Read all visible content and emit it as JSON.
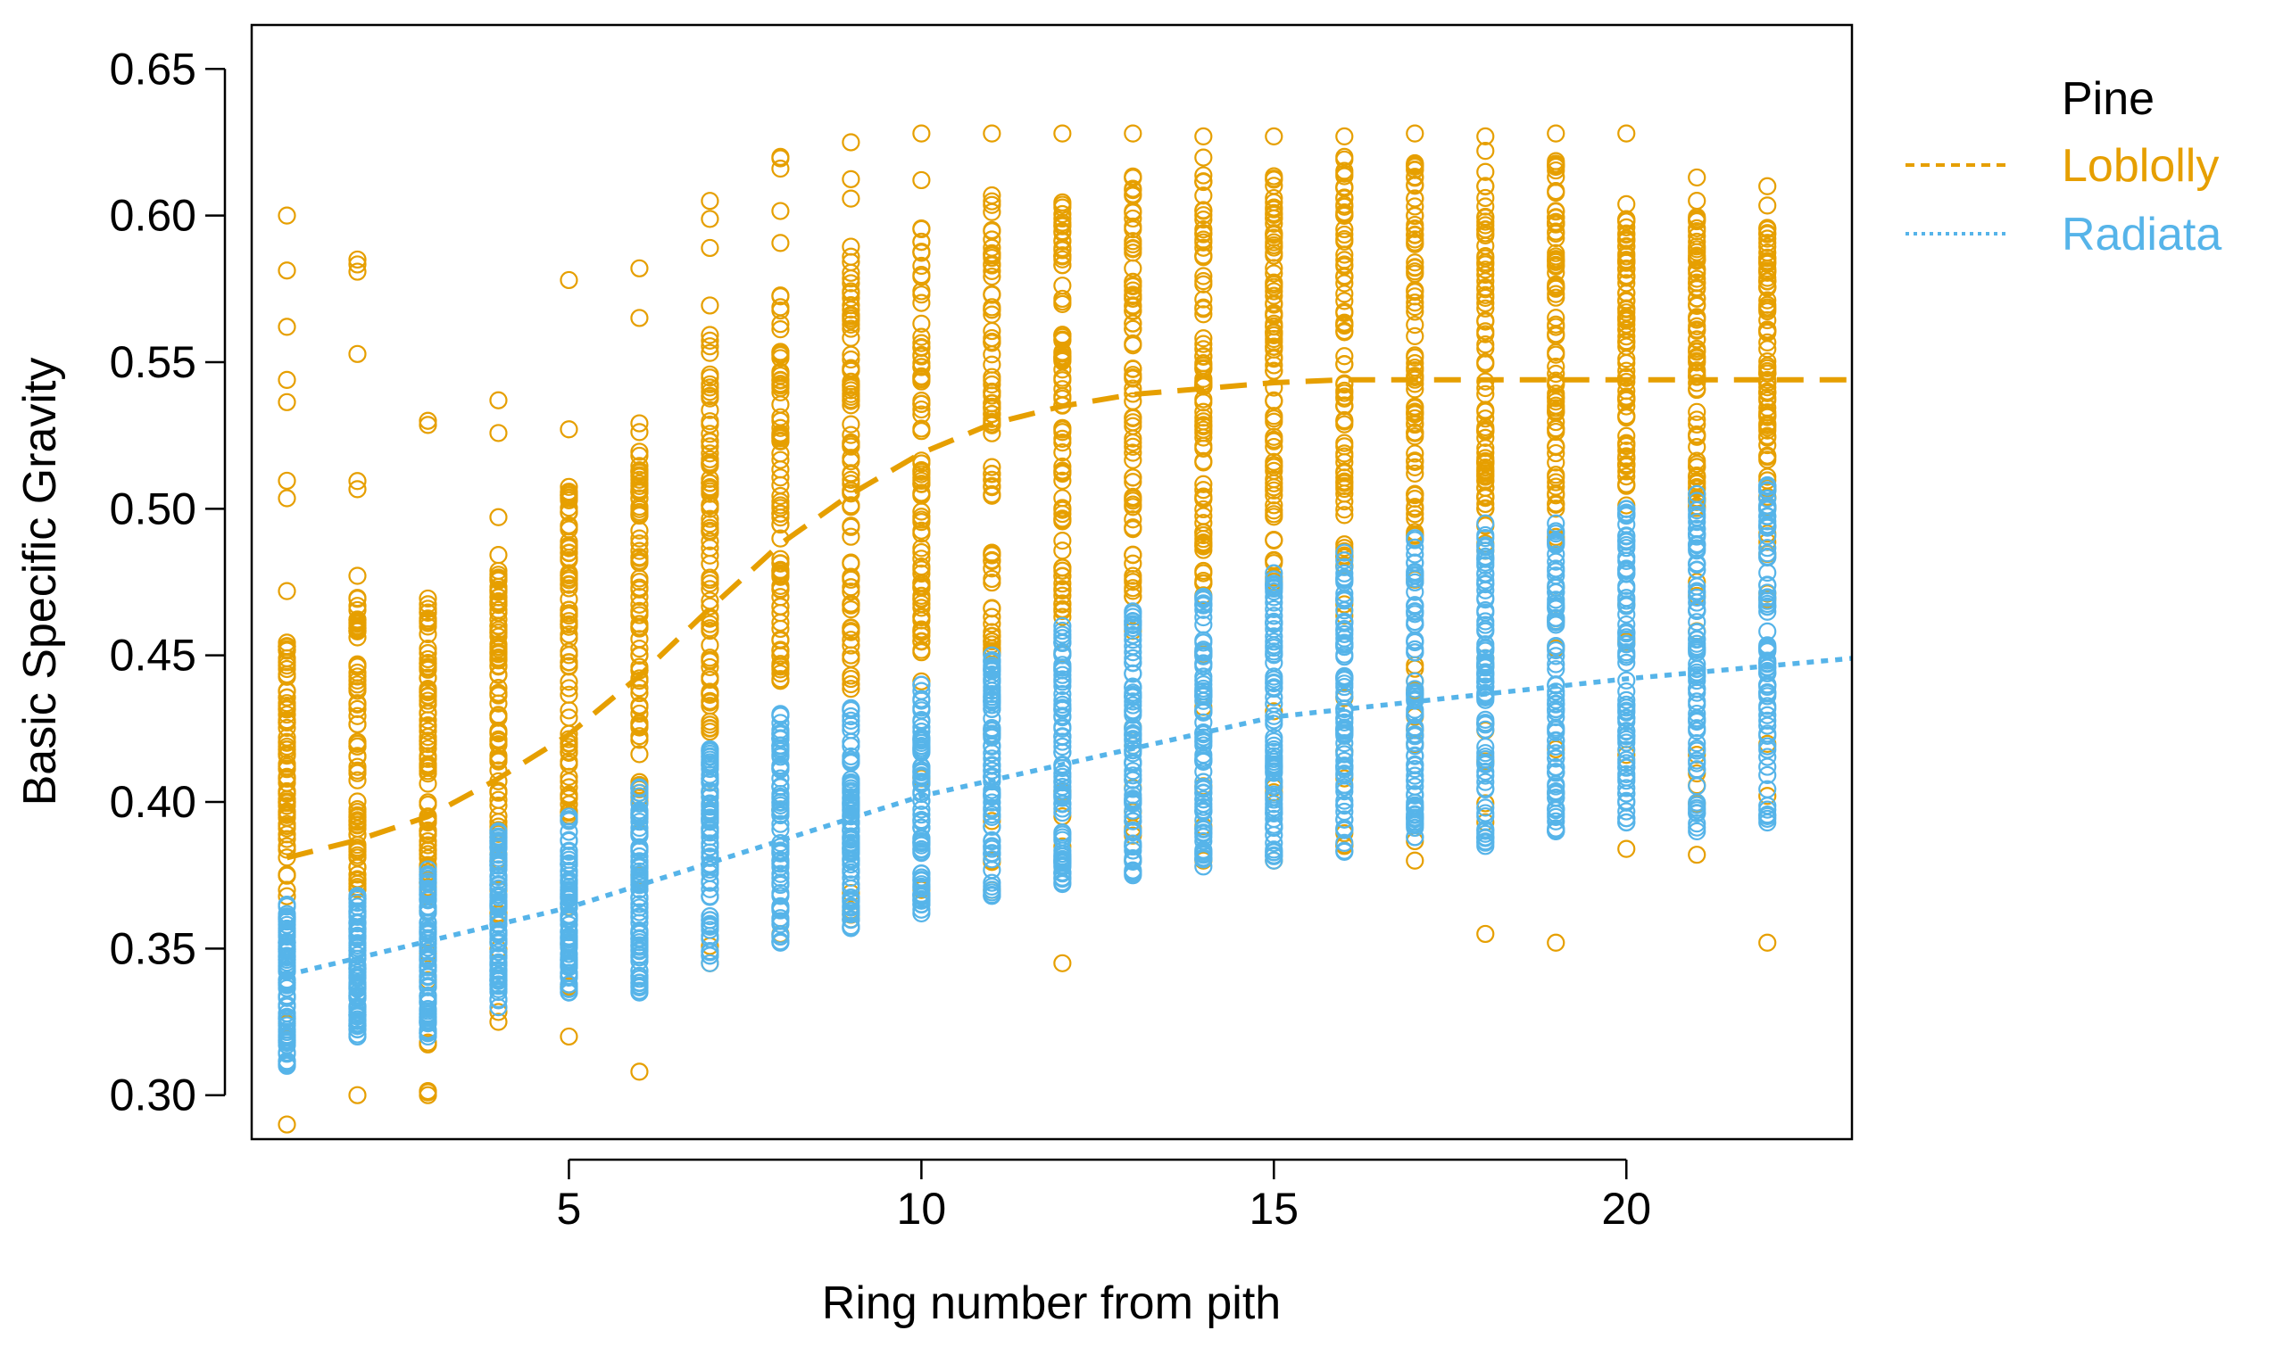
{
  "chart_data": {
    "type": "scatter",
    "title": "",
    "xlabel": "Ring number from pith",
    "ylabel": "Basic Specific Gravity",
    "xlim": [
      0.5,
      23.2
    ],
    "ylim": [
      0.285,
      0.665
    ],
    "xticks": [
      5,
      10,
      15,
      20
    ],
    "yticks": [
      0.3,
      0.35,
      0.4,
      0.45,
      0.5,
      0.55,
      0.6,
      0.65
    ],
    "xtick_labels": [
      "5",
      "10",
      "15",
      "20"
    ],
    "ytick_labels": [
      "0.30",
      "0.35",
      "0.40",
      "0.45",
      "0.50",
      "0.55",
      "0.60",
      "0.65"
    ],
    "grid": false,
    "legend": {
      "title": "Pine",
      "placement": "top-right outside",
      "entries": [
        {
          "label": "Loblolly",
          "color": "#E69F00",
          "linestyle": "dashed"
        },
        {
          "label": "Radiata",
          "color": "#56B4E9",
          "linestyle": "dotted"
        }
      ]
    },
    "series": [
      {
        "name": "Loblolly",
        "color": "#E69F00",
        "marker": "open-circle",
        "ring_ranges": [
          {
            "x": 1,
            "min": 0.29,
            "max": 0.6,
            "dense_min": 0.37,
            "dense_max": 0.46
          },
          {
            "x": 2,
            "min": 0.3,
            "max": 0.585,
            "dense_min": 0.37,
            "dense_max": 0.47
          },
          {
            "x": 3,
            "min": 0.3,
            "max": 0.53,
            "dense_min": 0.37,
            "dense_max": 0.47
          },
          {
            "x": 4,
            "min": 0.325,
            "max": 0.537,
            "dense_min": 0.38,
            "dense_max": 0.48
          },
          {
            "x": 5,
            "min": 0.32,
            "max": 0.578,
            "dense_min": 0.39,
            "dense_max": 0.51
          },
          {
            "x": 6,
            "min": 0.308,
            "max": 0.582,
            "dense_min": 0.4,
            "dense_max": 0.53
          },
          {
            "x": 7,
            "min": 0.345,
            "max": 0.605,
            "dense_min": 0.42,
            "dense_max": 0.56
          },
          {
            "x": 8,
            "min": 0.355,
            "max": 0.62,
            "dense_min": 0.44,
            "dense_max": 0.575
          },
          {
            "x": 9,
            "min": 0.36,
            "max": 0.625,
            "dense_min": 0.44,
            "dense_max": 0.59
          },
          {
            "x": 10,
            "min": 0.37,
            "max": 0.628,
            "dense_min": 0.45,
            "dense_max": 0.6
          },
          {
            "x": 11,
            "min": 0.37,
            "max": 0.628,
            "dense_min": 0.45,
            "dense_max": 0.61
          },
          {
            "x": 12,
            "min": 0.345,
            "max": 0.628,
            "dense_min": 0.46,
            "dense_max": 0.61
          },
          {
            "x": 13,
            "min": 0.38,
            "max": 0.628,
            "dense_min": 0.47,
            "dense_max": 0.615
          },
          {
            "x": 14,
            "min": 0.38,
            "max": 0.627,
            "dense_min": 0.47,
            "dense_max": 0.615
          },
          {
            "x": 15,
            "min": 0.38,
            "max": 0.627,
            "dense_min": 0.48,
            "dense_max": 0.615
          },
          {
            "x": 16,
            "min": 0.385,
            "max": 0.627,
            "dense_min": 0.48,
            "dense_max": 0.62
          },
          {
            "x": 17,
            "min": 0.38,
            "max": 0.628,
            "dense_min": 0.49,
            "dense_max": 0.62
          },
          {
            "x": 18,
            "min": 0.355,
            "max": 0.627,
            "dense_min": 0.49,
            "dense_max": 0.615
          },
          {
            "x": 19,
            "min": 0.352,
            "max": 0.628,
            "dense_min": 0.5,
            "dense_max": 0.62
          },
          {
            "x": 20,
            "min": 0.384,
            "max": 0.628,
            "dense_min": 0.5,
            "dense_max": 0.6
          },
          {
            "x": 21,
            "min": 0.382,
            "max": 0.613,
            "dense_min": 0.5,
            "dense_max": 0.6
          },
          {
            "x": 22,
            "min": 0.352,
            "max": 0.61,
            "dense_min": 0.5,
            "dense_max": 0.6
          }
        ],
        "trend": {
          "x": [
            1,
            2,
            3,
            4,
            5,
            6,
            7,
            8,
            9,
            10,
            11,
            12,
            13,
            14,
            15,
            16,
            17,
            18,
            19,
            20,
            21,
            22,
            23.2
          ],
          "y": [
            0.381,
            0.387,
            0.395,
            0.408,
            0.423,
            0.443,
            0.466,
            0.488,
            0.505,
            0.519,
            0.529,
            0.535,
            0.539,
            0.541,
            0.543,
            0.544,
            0.544,
            0.544,
            0.544,
            0.544,
            0.544,
            0.544,
            0.544
          ]
        }
      },
      {
        "name": "Radiata",
        "color": "#56B4E9",
        "marker": "open-circle",
        "ring_ranges": [
          {
            "x": 1,
            "min": 0.31,
            "max": 0.365
          },
          {
            "x": 2,
            "min": 0.32,
            "max": 0.368
          },
          {
            "x": 3,
            "min": 0.32,
            "max": 0.377
          },
          {
            "x": 4,
            "min": 0.33,
            "max": 0.39
          },
          {
            "x": 5,
            "min": 0.335,
            "max": 0.395
          },
          {
            "x": 6,
            "min": 0.335,
            "max": 0.405
          },
          {
            "x": 7,
            "min": 0.345,
            "max": 0.418
          },
          {
            "x": 8,
            "min": 0.352,
            "max": 0.43
          },
          {
            "x": 9,
            "min": 0.357,
            "max": 0.432
          },
          {
            "x": 10,
            "min": 0.362,
            "max": 0.44
          },
          {
            "x": 11,
            "min": 0.368,
            "max": 0.45
          },
          {
            "x": 12,
            "min": 0.372,
            "max": 0.46
          },
          {
            "x": 13,
            "min": 0.375,
            "max": 0.465
          },
          {
            "x": 14,
            "min": 0.378,
            "max": 0.47
          },
          {
            "x": 15,
            "min": 0.38,
            "max": 0.478
          },
          {
            "x": 16,
            "min": 0.383,
            "max": 0.485
          },
          {
            "x": 17,
            "min": 0.388,
            "max": 0.49
          },
          {
            "x": 18,
            "min": 0.385,
            "max": 0.495
          },
          {
            "x": 19,
            "min": 0.39,
            "max": 0.495
          },
          {
            "x": 20,
            "min": 0.393,
            "max": 0.5
          },
          {
            "x": 21,
            "min": 0.39,
            "max": 0.505
          },
          {
            "x": 22,
            "min": 0.393,
            "max": 0.508
          }
        ],
        "trend": {
          "x": [
            1,
            5,
            10,
            15,
            20,
            23.2
          ],
          "y": [
            0.341,
            0.364,
            0.402,
            0.429,
            0.442,
            0.449
          ]
        }
      }
    ]
  }
}
